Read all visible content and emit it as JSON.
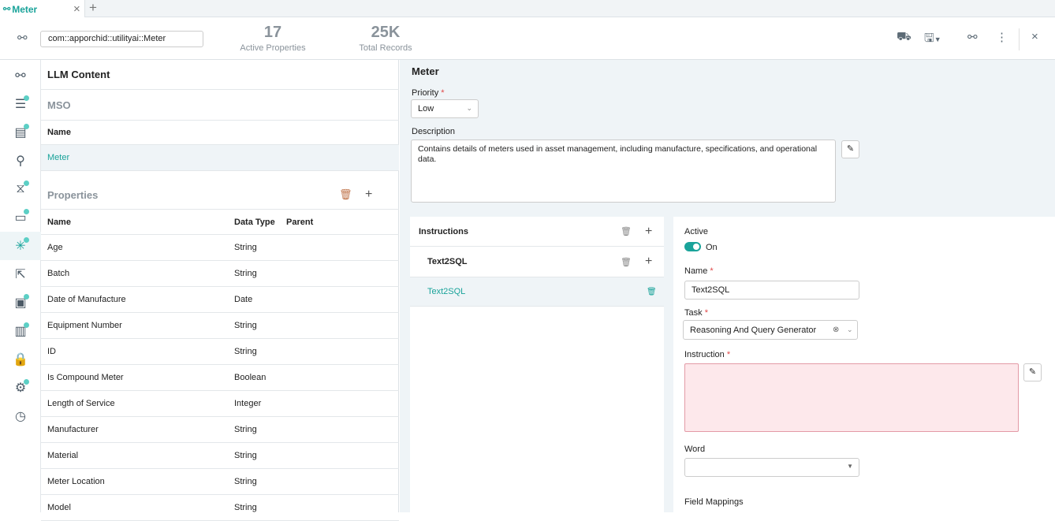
{
  "tab": {
    "title": "Meter",
    "close": "×",
    "add": "+"
  },
  "header": {
    "namespace": "com::apporchid::utilityai::Meter",
    "stats": [
      {
        "value": "17",
        "label": "Active Properties"
      },
      {
        "value": "25K",
        "label": "Total Records"
      }
    ]
  },
  "sidebar": {
    "items": [
      {
        "icon": "graph-icon",
        "badge": false
      },
      {
        "icon": "sliders-icon",
        "badge": true
      },
      {
        "icon": "server-icon",
        "badge": true
      },
      {
        "icon": "search-icon",
        "badge": false
      },
      {
        "icon": "dna-icon",
        "badge": true
      },
      {
        "icon": "chat-icon",
        "badge": true
      },
      {
        "icon": "sparkle-icon",
        "badge": true,
        "active": true
      },
      {
        "icon": "export-icon",
        "badge": false
      },
      {
        "icon": "monitor-icon",
        "badge": true
      },
      {
        "icon": "chart-icon",
        "badge": true
      },
      {
        "icon": "lock-icon",
        "badge": false
      },
      {
        "icon": "gear-icon",
        "badge": true
      },
      {
        "icon": "clock-icon",
        "badge": false
      }
    ]
  },
  "left": {
    "title": "LLM Content",
    "mso": "MSO",
    "mso_col": "Name",
    "mso_row": "Meter",
    "properties": "Properties",
    "columns": [
      "Name",
      "Data Type",
      "Parent"
    ],
    "rows": [
      [
        "Age",
        "String"
      ],
      [
        "Batch",
        "String"
      ],
      [
        "Date of Manufacture",
        "Date"
      ],
      [
        "Equipment Number",
        "String"
      ],
      [
        "ID",
        "String"
      ],
      [
        "Is Compound Meter",
        "Boolean"
      ],
      [
        "Length of Service",
        "Integer"
      ],
      [
        "Manufacturer",
        "String"
      ],
      [
        "Material",
        "String"
      ],
      [
        "Meter Location",
        "String"
      ],
      [
        "Model",
        "String"
      ]
    ]
  },
  "right": {
    "title": "Meter",
    "priority_label": "Priority",
    "priority": "Low",
    "description_label": "Description",
    "description": "Contains details of meters used in asset management, including manufacture, specifications, and operational data.",
    "instructions": {
      "title": "Instructions",
      "group": "Text2SQL",
      "item": "Text2SQL"
    },
    "detail": {
      "active_label": "Active",
      "active_state": "On",
      "active": true,
      "name_label": "Name",
      "name": "Text2SQL",
      "task_label": "Task",
      "task": "Reasoning And Query Generator",
      "instruction_label": "Instruction",
      "instruction": "",
      "word_label": "Word",
      "word": "",
      "field_mappings_label": "Field Mappings"
    }
  },
  "colors": {
    "accent": "#1aa39a",
    "error_bg": "#fde8eb",
    "error_border": "#e39aa6"
  }
}
